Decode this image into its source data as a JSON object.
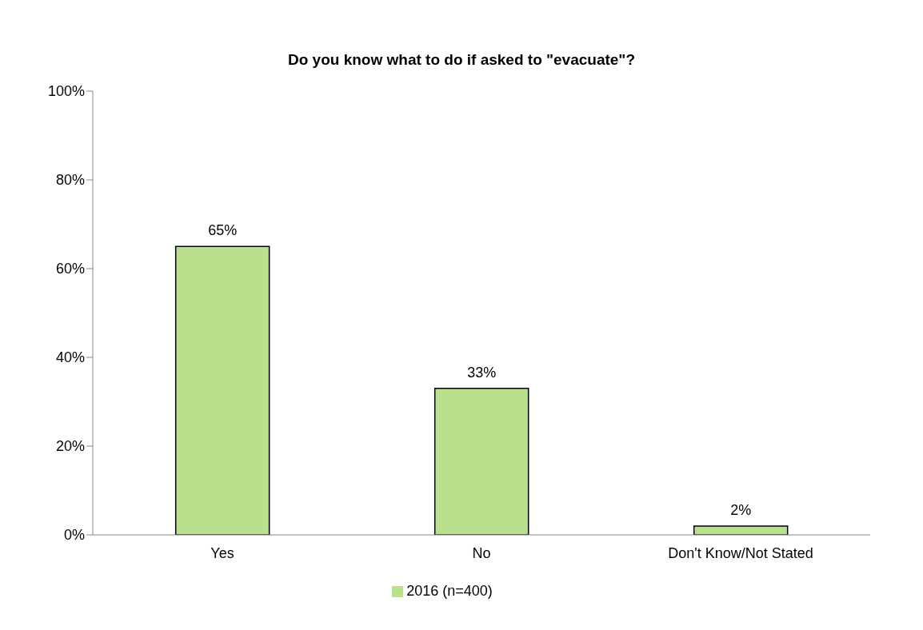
{
  "chart_data": {
    "type": "bar",
    "title": "Do you know what to do if asked to \"evacuate\"?",
    "categories": [
      "Yes",
      "No",
      "Don't Know/Not Stated"
    ],
    "series": [
      {
        "name": "2016 (n=400)",
        "color": "#b9e08d",
        "values": [
          65,
          33,
          2
        ],
        "value_labels": [
          "65%",
          "33%",
          "2%"
        ]
      }
    ],
    "ylim": [
      0,
      100
    ],
    "yticks": [
      {
        "value": 0,
        "label": "0%"
      },
      {
        "value": 20,
        "label": "20%"
      },
      {
        "value": 40,
        "label": "40%"
      },
      {
        "value": 60,
        "label": "60%"
      },
      {
        "value": 80,
        "label": "80%"
      },
      {
        "value": 100,
        "label": "100%"
      }
    ],
    "grid": false,
    "legend": "bottom"
  }
}
